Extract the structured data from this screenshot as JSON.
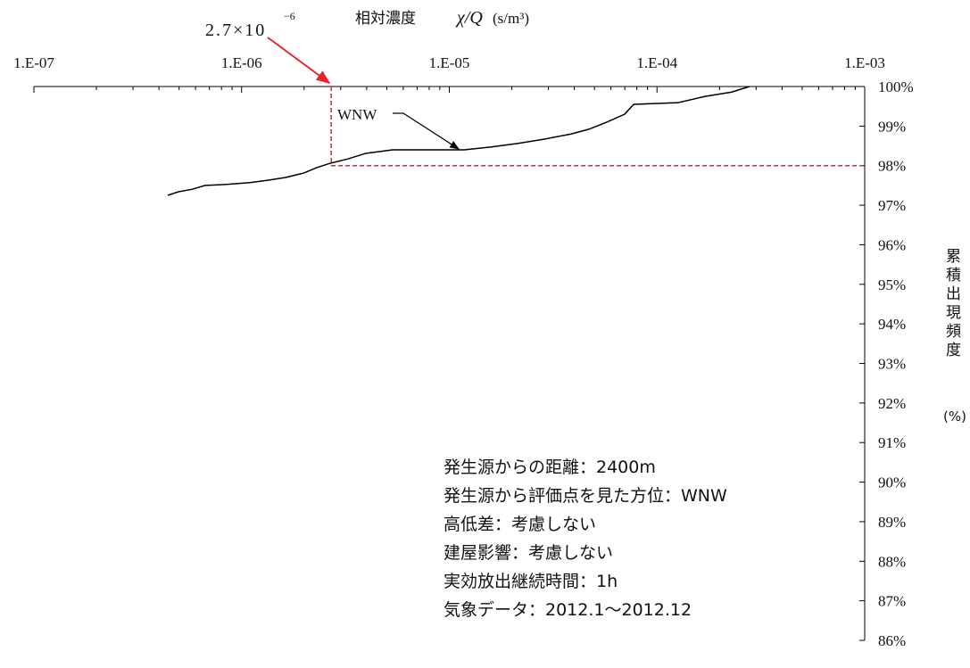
{
  "chart_data": {
    "type": "line",
    "x_label": "相対濃度",
    "x_label_symbol": "χ/Q",
    "x_label_unit": "(s/m³)",
    "y_label": "累積出現頻度",
    "y_label_unit": "(%)",
    "xscale": "log",
    "xlim": [
      1e-07,
      0.001
    ],
    "xticks": [
      {
        "value": 1e-07,
        "label": "1.E-07"
      },
      {
        "value": 1e-06,
        "label": "1.E-06"
      },
      {
        "value": 1e-05,
        "label": "1.E-05"
      },
      {
        "value": 0.0001,
        "label": "1.E-04"
      },
      {
        "value": 0.001,
        "label": "1.E-03"
      }
    ],
    "ylim": [
      86,
      100
    ],
    "yticks": [
      {
        "value": 86,
        "label": "86%"
      },
      {
        "value": 87,
        "label": "87%"
      },
      {
        "value": 88,
        "label": "88%"
      },
      {
        "value": 89,
        "label": "89%"
      },
      {
        "value": 90,
        "label": "90%"
      },
      {
        "value": 91,
        "label": "91%"
      },
      {
        "value": 92,
        "label": "92%"
      },
      {
        "value": 93,
        "label": "93%"
      },
      {
        "value": 94,
        "label": "94%"
      },
      {
        "value": 95,
        "label": "95%"
      },
      {
        "value": 96,
        "label": "96%"
      },
      {
        "value": 97,
        "label": "97%"
      },
      {
        "value": 98,
        "label": "98%"
      },
      {
        "value": 99,
        "label": "99%"
      },
      {
        "value": 100,
        "label": "100%"
      }
    ],
    "series": [
      {
        "name": "WNW",
        "color": "#000000",
        "x": [
          4.41e-07,
          4.97e-07,
          5.76e-07,
          6.68e-07,
          8.14e-07,
          1.096e-06,
          1.336e-06,
          1.628e-06,
          1.984e-06,
          2.3e-06,
          2.67e-06,
          3.25e-06,
          3.96e-06,
          5.33e-06,
          1.18e-05,
          1.58e-05,
          2.13e-05,
          2.87e-05,
          3.86e-05,
          4.7e-05,
          5.73e-05,
          6.99e-05,
          7.72e-05,
          0.000126,
          0.00017,
          0.000229,
          0.000279
        ],
        "values": [
          97.25,
          97.34,
          97.4,
          97.5,
          97.52,
          97.57,
          97.63,
          97.7,
          97.81,
          97.95,
          98.06,
          98.17,
          98.31,
          98.4,
          98.4,
          98.47,
          98.56,
          98.67,
          98.8,
          98.92,
          99.1,
          99.3,
          99.55,
          99.59,
          99.75,
          99.86,
          100
        ]
      }
    ],
    "reference": {
      "x": 2.7e-06,
      "y": 98,
      "color": "#e8232b",
      "text": "2.7×10",
      "exponent": "−6"
    },
    "notes": [
      "発生源からの距離：2400m",
      "発生源から評価点を見た方位：WNW",
      "高低差：考慮しない",
      "建屋影響：考慮しない",
      "実効放出継続時間：1h",
      "気象データ：2012.1～2012.12"
    ]
  }
}
